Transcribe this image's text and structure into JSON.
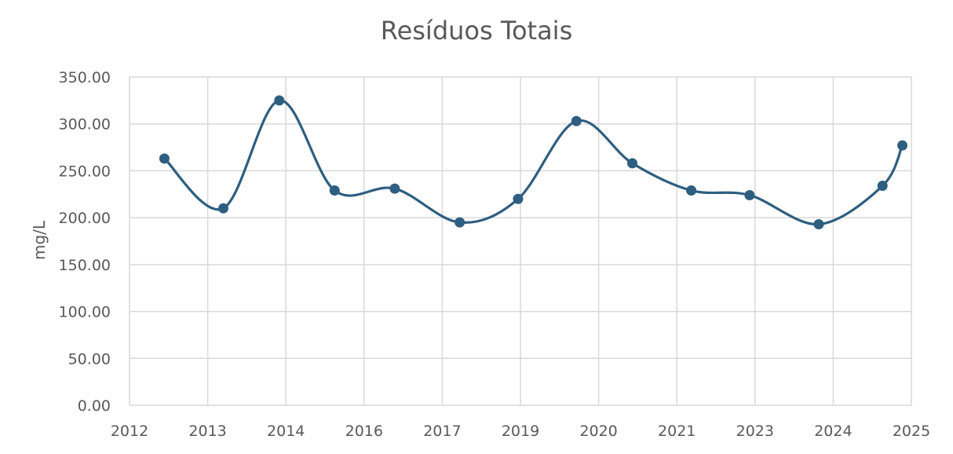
{
  "chart_data": {
    "type": "scatter",
    "title": "Resíduos Totais",
    "ylabel": "mg/L",
    "xlabel": "",
    "xlim": [
      2012,
      2025
    ],
    "ylim": [
      0,
      350
    ],
    "x_ticks": [
      "2012",
      "2013",
      "2014",
      "2016",
      "2017",
      "2019",
      "2020",
      "2021",
      "2023",
      "2024",
      "2025"
    ],
    "y_ticks": [
      "0.00",
      "50.00",
      "100.00",
      "150.00",
      "200.00",
      "250.00",
      "300.00",
      "350.00"
    ],
    "grid": true,
    "smooth_line": true,
    "color": "#2e5e80",
    "series": [
      {
        "x": [
          2012.58,
          2013.56,
          2014.49,
          2015.41,
          2016.41,
          2017.49,
          2018.46,
          2019.43,
          2020.36,
          2021.34,
          2022.31,
          2023.46,
          2024.52,
          2024.85
        ],
        "values": [
          263,
          210,
          325,
          229,
          231,
          195,
          220,
          303,
          258,
          229,
          224,
          193,
          234,
          277
        ]
      }
    ]
  }
}
